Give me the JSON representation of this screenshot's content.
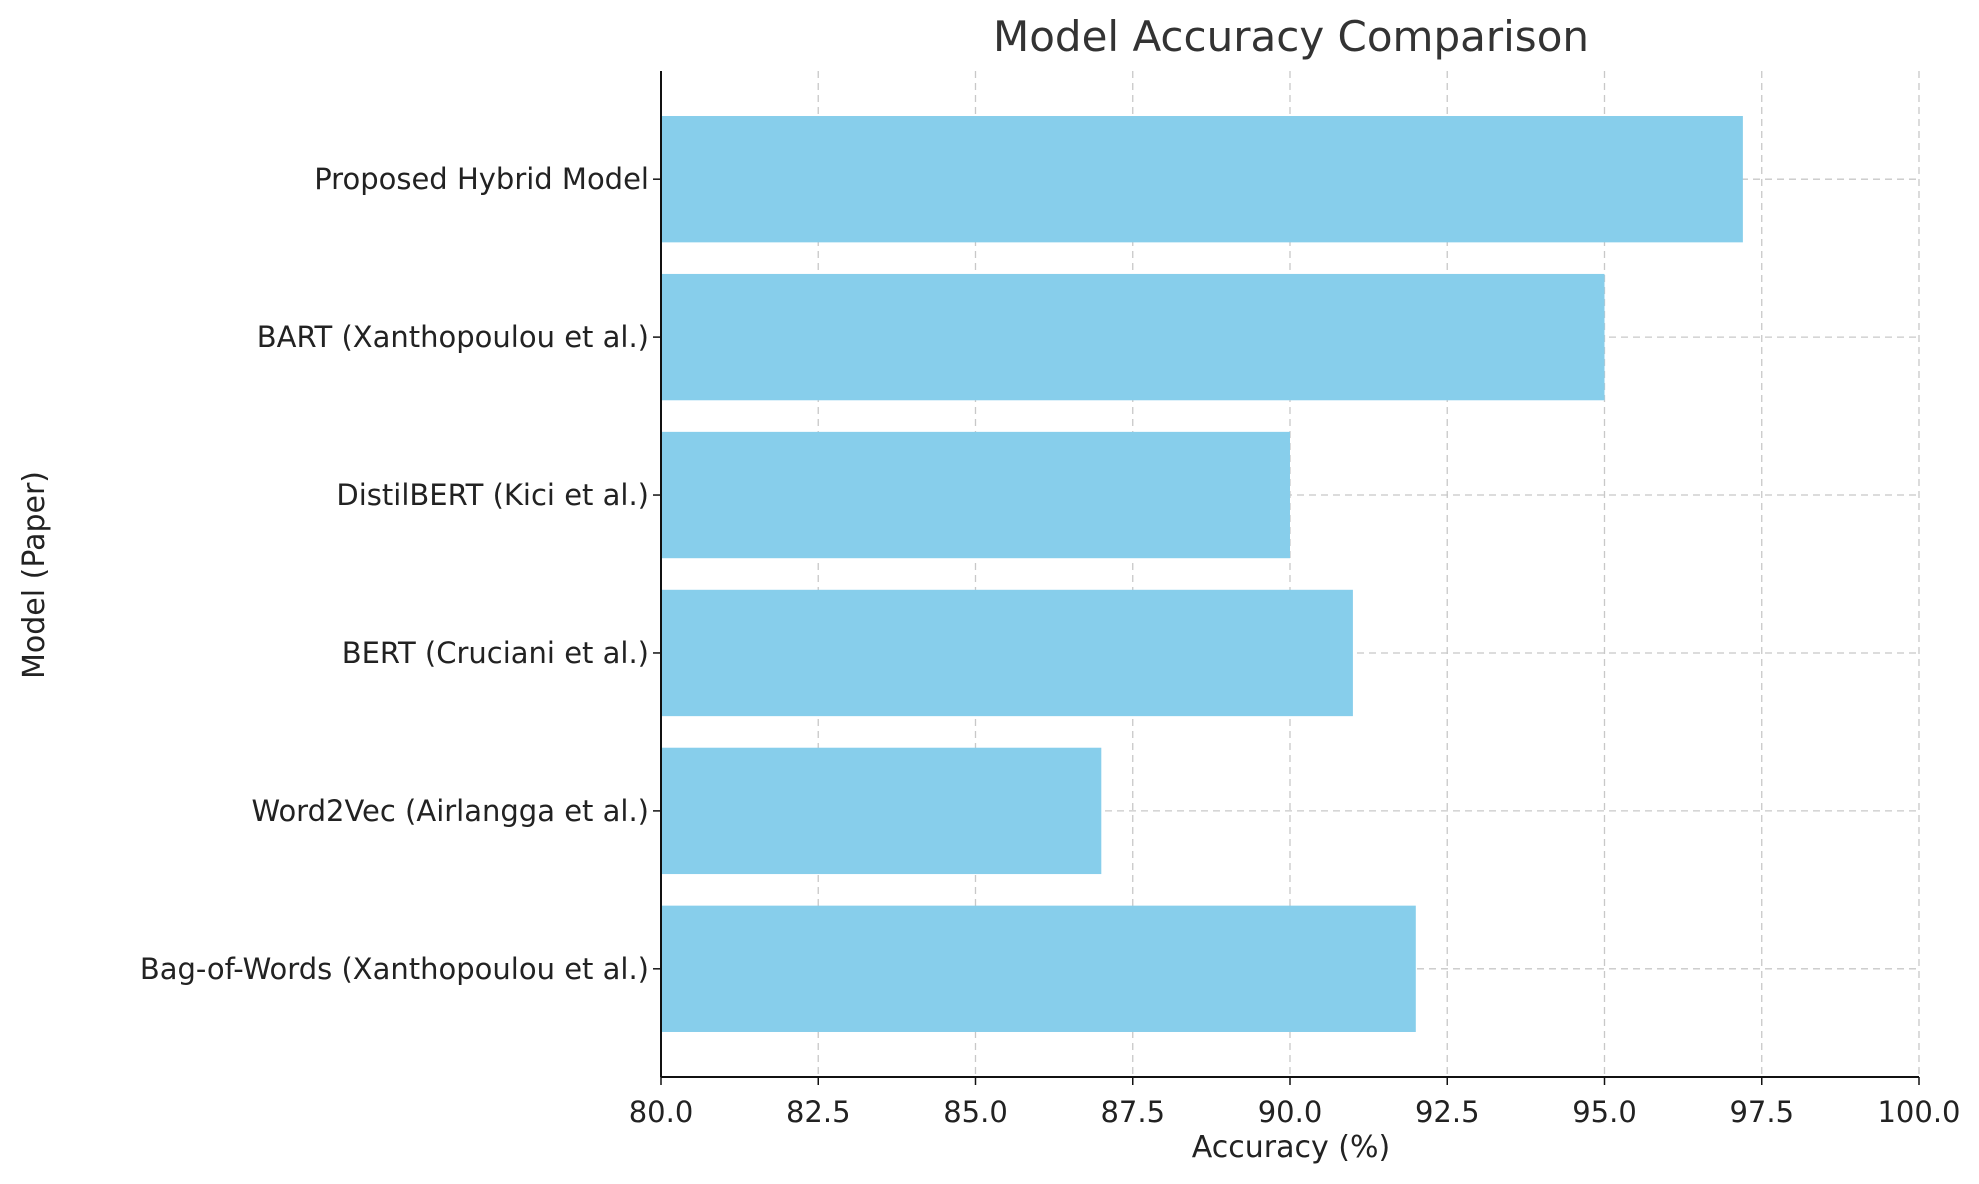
{
  "chart_data": {
    "type": "bar",
    "orientation": "horizontal",
    "title": "Model Accuracy Comparison",
    "xlabel": "Accuracy (%)",
    "ylabel": "Model (Paper)",
    "categories": [
      "Proposed Hybrid Model",
      "BART (Xanthopoulou et al.)",
      "DistilBERT (Kici et al.)",
      "BERT (Cruciani et al.)",
      "Word2Vec (Airlangga et al.)",
      "Bag-of-Words (Xanthopoulou et al.)"
    ],
    "values": [
      97.2,
      95.0,
      90.0,
      91.0,
      87.0,
      92.0
    ],
    "xlim": [
      80.0,
      100.0
    ],
    "xticks": [
      80.0,
      82.5,
      85.0,
      87.5,
      90.0,
      92.5,
      95.0,
      97.5,
      100.0
    ],
    "xtick_labels": [
      "80.0",
      "82.5",
      "85.0",
      "87.5",
      "90.0",
      "92.5",
      "95.0",
      "97.5",
      "100.0"
    ],
    "grid": true,
    "legend": false,
    "bar_color": "#87ceeb"
  }
}
